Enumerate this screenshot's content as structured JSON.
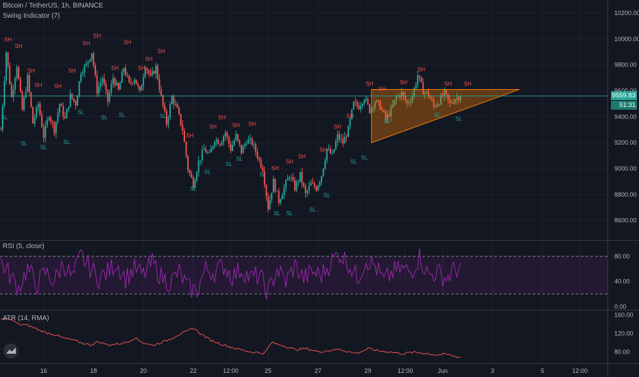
{
  "header": {
    "symbol_line": "Bitcoin / TetherUS, 1h, BINANCE",
    "indicator_line": "Swing Indicator (7)"
  },
  "rsi_legend": "RSI (5, close)",
  "atr_legend": "ATR (14, RMA)",
  "last_price_label": "9559.83",
  "countdown_label": "51:31",
  "colors": {
    "background": "#131722",
    "up": "#26a69a",
    "down": "#ef5350",
    "rsi": "#9c27b0",
    "atr": "#ef5350",
    "triangle": "#f57c00",
    "swing_high": "#ef5350",
    "swing_low": "#26a69a"
  },
  "icons": {
    "logo": "tradingview-logo-icon"
  },
  "chart_data": [
    {
      "type": "candlestick",
      "title": "Bitcoin / TetherUS, 1h, BINANCE",
      "ylim": [
        8450,
        10300
      ],
      "yticks": [
        "8600.00",
        "8800.00",
        "9000.00",
        "9200.00",
        "9400.00",
        "9600.00",
        "9800.00",
        "10000.00",
        "10200.00"
      ],
      "ytick_values": [
        8600,
        8800,
        9000,
        9200,
        9400,
        9600,
        9800,
        10000,
        10200
      ],
      "xlim": [
        0,
        340
      ],
      "xticks": [
        {
          "i": 24,
          "label": "16"
        },
        {
          "i": 52,
          "label": "18"
        },
        {
          "i": 80,
          "label": "20"
        },
        {
          "i": 108,
          "label": "22"
        },
        {
          "i": 129,
          "label": "12:00"
        },
        {
          "i": 150,
          "label": "25"
        },
        {
          "i": 178,
          "label": "27"
        },
        {
          "i": 206,
          "label": "29"
        },
        {
          "i": 227,
          "label": "12:00"
        },
        {
          "i": 248,
          "label": "Jun"
        },
        {
          "i": 276,
          "label": "3"
        },
        {
          "i": 304,
          "label": "5"
        },
        {
          "i": 325,
          "label": "12:00"
        }
      ],
      "close_anchors": [
        [
          0,
          9300
        ],
        [
          3,
          9900
        ],
        [
          6,
          9550
        ],
        [
          9,
          9800
        ],
        [
          12,
          9450
        ],
        [
          15,
          9700
        ],
        [
          18,
          9350
        ],
        [
          21,
          9500
        ],
        [
          24,
          9250
        ],
        [
          27,
          9420
        ],
        [
          30,
          9300
        ],
        [
          33,
          9500
        ],
        [
          36,
          9380
        ],
        [
          39,
          9560
        ],
        [
          42,
          9500
        ],
        [
          45,
          9750
        ],
        [
          48,
          9800
        ],
        [
          51,
          9900
        ],
        [
          54,
          9600
        ],
        [
          57,
          9700
        ],
        [
          60,
          9520
        ],
        [
          63,
          9700
        ],
        [
          66,
          9600
        ],
        [
          69,
          9780
        ],
        [
          72,
          9650
        ],
        [
          75,
          9700
        ],
        [
          78,
          9580
        ],
        [
          81,
          9800
        ],
        [
          84,
          9700
        ],
        [
          87,
          9780
        ],
        [
          90,
          9550
        ],
        [
          93,
          9350
        ],
        [
          96,
          9550
        ],
        [
          99,
          9450
        ],
        [
          102,
          9300
        ],
        [
          105,
          9000
        ],
        [
          108,
          8880
        ],
        [
          111,
          9050
        ],
        [
          114,
          9150
        ],
        [
          117,
          9100
        ],
        [
          120,
          9230
        ],
        [
          123,
          9200
        ],
        [
          126,
          9280
        ],
        [
          129,
          9150
        ],
        [
          132,
          9250
        ],
        [
          135,
          9130
        ],
        [
          138,
          9220
        ],
        [
          141,
          9200
        ],
        [
          144,
          9100
        ],
        [
          147,
          9000
        ],
        [
          150,
          8700
        ],
        [
          153,
          8900
        ],
        [
          156,
          8750
        ],
        [
          159,
          8850
        ],
        [
          162,
          8950
        ],
        [
          165,
          8850
        ],
        [
          168,
          8950
        ],
        [
          171,
          8800
        ],
        [
          174,
          8880
        ],
        [
          177,
          8850
        ],
        [
          180,
          8950
        ],
        [
          183,
          9150
        ],
        [
          186,
          9100
        ],
        [
          189,
          9250
        ],
        [
          192,
          9200
        ],
        [
          195,
          9300
        ],
        [
          198,
          9500
        ],
        [
          201,
          9480
        ],
        [
          204,
          9550
        ],
        [
          207,
          9450
        ],
        [
          210,
          9520
        ],
        [
          213,
          9480
        ],
        [
          216,
          9380
        ],
        [
          219,
          9450
        ],
        [
          222,
          9550
        ],
        [
          225,
          9580
        ],
        [
          228,
          9500
        ],
        [
          231,
          9560
        ],
        [
          234,
          9720
        ],
        [
          237,
          9600
        ],
        [
          240,
          9570
        ],
        [
          243,
          9480
        ],
        [
          246,
          9520
        ],
        [
          249,
          9580
        ],
        [
          252,
          9500
        ],
        [
          255,
          9540
        ],
        [
          258,
          9560
        ]
      ],
      "last_price": 9559.83,
      "horizontal_line": 9559.83,
      "swing_highs": [
        [
          4,
          9980
        ],
        [
          10,
          9930
        ],
        [
          17,
          9740
        ],
        [
          21,
          9630
        ],
        [
          32,
          9620
        ],
        [
          40,
          9740
        ],
        [
          48,
          9950
        ],
        [
          54,
          10010
        ],
        [
          64,
          9760
        ],
        [
          71,
          9960
        ],
        [
          79,
          9760
        ],
        [
          83,
          9830
        ],
        [
          90,
          9890
        ],
        [
          106,
          9240
        ],
        [
          119,
          9310
        ],
        [
          124,
          9380
        ],
        [
          132,
          9320
        ],
        [
          141,
          9330
        ],
        [
          154,
          8990
        ],
        [
          162,
          9040
        ],
        [
          169,
          9080
        ],
        [
          181,
          9130
        ],
        [
          189,
          9310
        ],
        [
          196,
          9390
        ],
        [
          207,
          9640
        ],
        [
          214,
          9600
        ],
        [
          226,
          9650
        ],
        [
          236,
          9750
        ],
        [
          251,
          9640
        ],
        [
          262,
          9640
        ]
      ],
      "swing_lows": [
        [
          2,
          9380
        ],
        [
          13,
          9180
        ],
        [
          24,
          9150
        ],
        [
          37,
          9190
        ],
        [
          45,
          9420
        ],
        [
          58,
          9380
        ],
        [
          68,
          9400
        ],
        [
          91,
          9390
        ],
        [
          108,
          8830
        ],
        [
          116,
          8960
        ],
        [
          128,
          9020
        ],
        [
          134,
          9060
        ],
        [
          147,
          8940
        ],
        [
          155,
          8640
        ],
        [
          162,
          8640
        ],
        [
          175,
          8670
        ],
        [
          183,
          8780
        ],
        [
          198,
          9040
        ],
        [
          204,
          9070
        ],
        [
          217,
          9350
        ],
        [
          245,
          9400
        ],
        [
          257,
          9370
        ]
      ],
      "triangle": {
        "top_left": [
          208,
          9610
        ],
        "apex": [
          291,
          9610
        ],
        "bottom_left": [
          208,
          9200
        ]
      }
    },
    {
      "type": "line",
      "title": "RSI (5, close)",
      "ylim": [
        -5,
        105
      ],
      "yticks": [
        "0.00",
        "40.00",
        "80.00"
      ],
      "ytick_values": [
        0,
        40,
        80
      ],
      "bands": [
        20,
        80
      ],
      "anchors": [
        [
          0,
          72
        ],
        [
          5,
          50
        ],
        [
          10,
          30
        ],
        [
          15,
          60
        ],
        [
          20,
          35
        ],
        [
          25,
          55
        ],
        [
          30,
          40
        ],
        [
          35,
          70
        ],
        [
          40,
          45
        ],
        [
          45,
          80
        ],
        [
          50,
          62
        ],
        [
          55,
          45
        ],
        [
          60,
          55
        ],
        [
          65,
          70
        ],
        [
          70,
          45
        ],
        [
          75,
          60
        ],
        [
          80,
          50
        ],
        [
          85,
          70
        ],
        [
          90,
          48
        ],
        [
          95,
          38
        ],
        [
          100,
          55
        ],
        [
          105,
          30
        ],
        [
          110,
          25
        ],
        [
          115,
          60
        ],
        [
          120,
          55
        ],
        [
          125,
          65
        ],
        [
          130,
          48
        ],
        [
          135,
          60
        ],
        [
          140,
          45
        ],
        [
          145,
          50
        ],
        [
          150,
          22
        ],
        [
          155,
          60
        ],
        [
          160,
          40
        ],
        [
          165,
          65
        ],
        [
          170,
          45
        ],
        [
          175,
          55
        ],
        [
          180,
          50
        ],
        [
          185,
          70
        ],
        [
          190,
          85
        ],
        [
          195,
          70
        ],
        [
          200,
          45
        ],
        [
          205,
          75
        ],
        [
          210,
          65
        ],
        [
          215,
          40
        ],
        [
          220,
          55
        ],
        [
          225,
          60
        ],
        [
          230,
          55
        ],
        [
          235,
          80
        ],
        [
          240,
          50
        ],
        [
          245,
          55
        ],
        [
          250,
          45
        ],
        [
          255,
          60
        ],
        [
          258,
          60
        ]
      ]
    },
    {
      "type": "line",
      "title": "ATR (14, RMA)",
      "ylim": [
        55,
        170
      ],
      "yticks": [
        "80.00",
        "120.00",
        "160.00"
      ],
      "ytick_values": [
        80,
        120,
        160
      ],
      "anchors": [
        [
          0,
          150
        ],
        [
          5,
          152
        ],
        [
          10,
          140
        ],
        [
          15,
          138
        ],
        [
          20,
          130
        ],
        [
          25,
          122
        ],
        [
          30,
          118
        ],
        [
          35,
          110
        ],
        [
          40,
          106
        ],
        [
          45,
          100
        ],
        [
          50,
          95
        ],
        [
          55,
          102
        ],
        [
          60,
          95
        ],
        [
          65,
          97
        ],
        [
          70,
          100
        ],
        [
          75,
          110
        ],
        [
          80,
          100
        ],
        [
          85,
          94
        ],
        [
          90,
          100
        ],
        [
          95,
          108
        ],
        [
          100,
          118
        ],
        [
          105,
          125
        ],
        [
          108,
          132
        ],
        [
          112,
          120
        ],
        [
          118,
          105
        ],
        [
          125,
          95
        ],
        [
          132,
          87
        ],
        [
          140,
          80
        ],
        [
          148,
          77
        ],
        [
          152,
          100
        ],
        [
          158,
          94
        ],
        [
          165,
          85
        ],
        [
          172,
          87
        ],
        [
          178,
          80
        ],
        [
          185,
          83
        ],
        [
          190,
          86
        ],
        [
          195,
          80
        ],
        [
          200,
          77
        ],
        [
          206,
          87
        ],
        [
          212,
          82
        ],
        [
          218,
          80
        ],
        [
          225,
          76
        ],
        [
          232,
          79
        ],
        [
          238,
          77
        ],
        [
          245,
          73
        ],
        [
          250,
          75
        ],
        [
          255,
          70
        ],
        [
          258,
          68
        ]
      ]
    }
  ]
}
